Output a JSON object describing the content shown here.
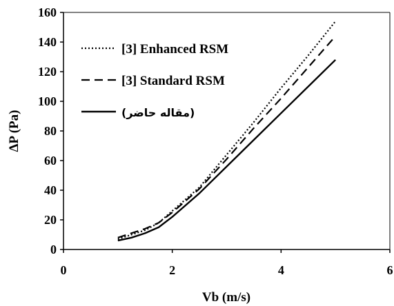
{
  "chart_data": {
    "type": "line",
    "xlabel": "Vb (m/s)",
    "ylabel": "ΔP (Pa)",
    "xlim": [
      0,
      6
    ],
    "ylim": [
      0,
      160
    ],
    "xticks": [
      0,
      2,
      4,
      6
    ],
    "yticks": [
      0,
      20,
      40,
      60,
      80,
      100,
      120,
      140,
      160
    ],
    "grid": false,
    "legend_position": "top-left",
    "series": [
      {
        "name": "[3] Enhanced RSM",
        "style": "dotted",
        "color": "#000000",
        "x": [
          1.0,
          1.25,
          1.5,
          1.75,
          2.0,
          2.5,
          3.0,
          3.5,
          4.0,
          4.5,
          5.0
        ],
        "y": [
          7,
          10,
          13,
          18,
          26,
          42,
          64,
          86,
          109,
          131,
          154
        ]
      },
      {
        "name": "[3] Standard RSM",
        "style": "dashed",
        "color": "#000000",
        "x": [
          1.0,
          1.25,
          1.5,
          1.75,
          2.0,
          2.5,
          3.0,
          3.5,
          4.0,
          4.5,
          5.0
        ],
        "y": [
          8,
          11,
          14,
          18,
          25,
          41,
          61,
          82,
          102,
          123,
          144
        ]
      },
      {
        "name": "(مقاله حاضر)",
        "style": "solid",
        "color": "#000000",
        "x": [
          1.0,
          1.25,
          1.5,
          1.75,
          2.0,
          2.5,
          3.0,
          3.5,
          4.0,
          4.5,
          5.0
        ],
        "y": [
          6,
          8,
          11,
          15,
          22,
          38,
          56,
          74,
          92,
          110,
          128
        ]
      }
    ]
  }
}
